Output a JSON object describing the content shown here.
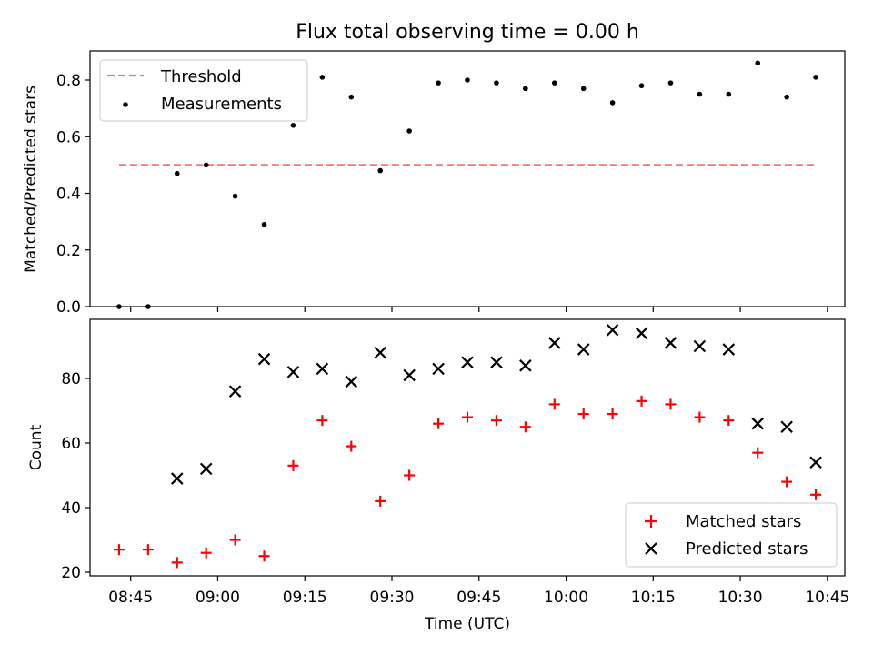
{
  "chart_data": [
    {
      "type": "scatter",
      "title": "Flux total observing time = 0.00 h",
      "xlabel": "",
      "ylabel": "Matched/Predicted stars",
      "ylim": [
        0.0,
        0.9
      ],
      "yticks": [
        "0.0",
        "0.2",
        "0.4",
        "0.6",
        "0.8"
      ],
      "legend_position": "upper-left",
      "x": [
        "08:43",
        "08:48",
        "08:53",
        "08:58",
        "09:03",
        "09:08",
        "09:13",
        "09:18",
        "09:23",
        "09:28",
        "09:33",
        "09:38",
        "09:43",
        "09:48",
        "09:53",
        "09:58",
        "10:03",
        "10:08",
        "10:13",
        "10:18",
        "10:23",
        "10:28",
        "10:33",
        "10:38",
        "10:43"
      ],
      "series": [
        {
          "name": "Measurements",
          "color": "#000000",
          "marker": "dot",
          "values": [
            0.0,
            0.0,
            0.47,
            0.5,
            0.39,
            0.29,
            0.64,
            0.81,
            0.74,
            0.48,
            0.62,
            0.79,
            0.8,
            0.79,
            0.77,
            0.79,
            0.77,
            0.72,
            0.78,
            0.79,
            0.75,
            0.75,
            0.86,
            0.74,
            0.81
          ]
        },
        {
          "name": "Threshold",
          "color": "#ff7070",
          "style": "dashed",
          "value": 0.5,
          "x_range": [
            "08:43",
            "10:43"
          ]
        }
      ]
    },
    {
      "type": "scatter",
      "title": "",
      "xlabel": "Time (UTC)",
      "ylabel": "Count",
      "ylim": [
        19,
        97
      ],
      "yticks": [
        "20",
        "40",
        "60",
        "80"
      ],
      "xticks": [
        "08:45",
        "09:00",
        "09:15",
        "09:30",
        "09:45",
        "10:00",
        "10:15",
        "10:30",
        "10:45"
      ],
      "legend_position": "lower-right",
      "series": [
        {
          "name": "Matched stars",
          "color": "#ff0000",
          "marker": "plus",
          "x": [
            "08:43",
            "08:48",
            "08:53",
            "08:58",
            "09:03",
            "09:08",
            "09:13",
            "09:18",
            "09:23",
            "09:28",
            "09:33",
            "09:38",
            "09:43",
            "09:48",
            "09:53",
            "09:58",
            "10:03",
            "10:08",
            "10:13",
            "10:18",
            "10:23",
            "10:28",
            "10:33",
            "10:38",
            "10:43"
          ],
          "values": [
            27,
            27,
            23,
            26,
            30,
            25,
            53,
            67,
            59,
            42,
            50,
            66,
            68,
            67,
            65,
            72,
            69,
            69,
            73,
            72,
            68,
            67,
            57,
            48,
            44
          ]
        },
        {
          "name": "Predicted stars",
          "color": "#000000",
          "marker": "x",
          "x": [
            "08:53",
            "08:58",
            "09:03",
            "09:08",
            "09:13",
            "09:18",
            "09:23",
            "09:28",
            "09:33",
            "09:38",
            "09:43",
            "09:48",
            "09:53",
            "09:58",
            "10:03",
            "10:08",
            "10:13",
            "10:18",
            "10:23",
            "10:28",
            "10:33",
            "10:38",
            "10:43"
          ],
          "values": [
            49,
            52,
            76,
            86,
            82,
            83,
            79,
            88,
            81,
            83,
            85,
            85,
            84,
            91,
            89,
            95,
            94,
            91,
            90,
            89,
            66,
            65,
            54
          ]
        }
      ]
    }
  ]
}
